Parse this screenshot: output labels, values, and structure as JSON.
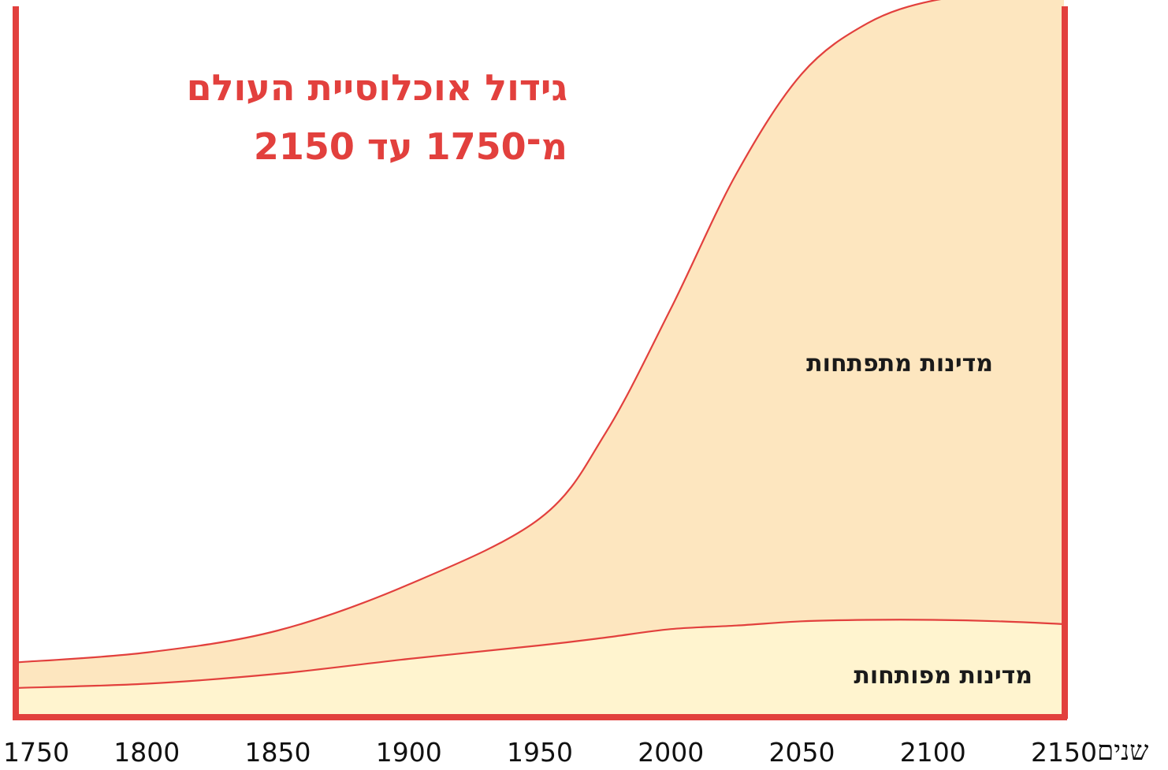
{
  "title": {
    "line1": "גידול אוכלוסיית העולם",
    "line2": "מ־1750 עד 2150"
  },
  "colors": {
    "frame": "#e2403d",
    "curve": "#e2403d",
    "developing_fill": "#fde6bf",
    "developed_fill": "#fff4cf",
    "text": "#111111"
  },
  "chart_data": {
    "type": "area",
    "stacked": true,
    "title": "גידול אוכלוסיית העולם מ־1750 עד 2150",
    "xlabel": "שנים",
    "ylabel": "",
    "xlim": [
      1750,
      2150
    ],
    "ylim": [
      0,
      1
    ],
    "x_ticks": [
      "1750",
      "1800",
      "1850",
      "1900",
      "1950",
      "2000",
      "2050",
      "2100",
      "2150"
    ],
    "grid": false,
    "legend": "inline labels inside areas",
    "x": [
      1750,
      1800,
      1850,
      1900,
      1950,
      1975,
      2000,
      2025,
      2050,
      2075,
      2100,
      2125,
      2150
    ],
    "series": [
      {
        "name": "מדינות מפותחות",
        "values": [
          0.039,
          0.045,
          0.059,
          0.08,
          0.099,
          0.11,
          0.122,
          0.127,
          0.133,
          0.135,
          0.135,
          0.133,
          0.129
        ]
      },
      {
        "name": "מדינות מתפתחות",
        "values": [
          0.036,
          0.044,
          0.061,
          0.105,
          0.179,
          0.288,
          0.452,
          0.637,
          0.772,
          0.841,
          0.873,
          0.882,
          0.888
        ]
      }
    ]
  }
}
